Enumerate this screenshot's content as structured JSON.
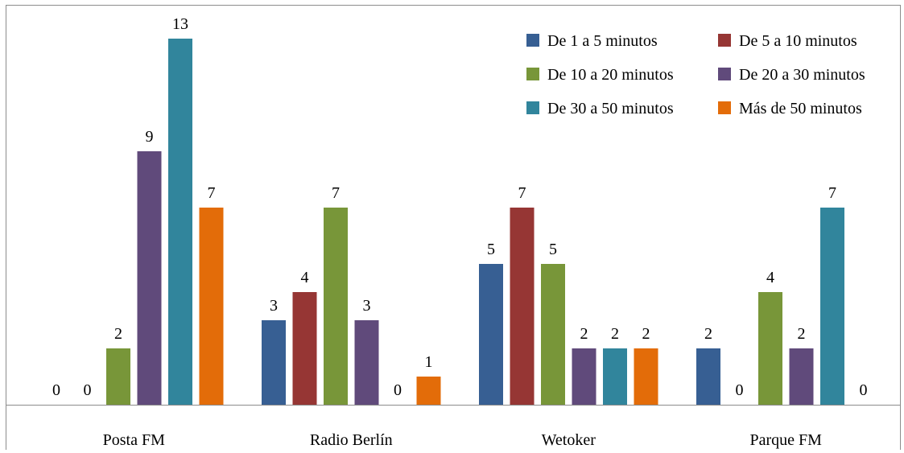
{
  "chart_data": {
    "type": "bar",
    "title": "",
    "xlabel": "",
    "ylabel": "",
    "categories": [
      "Posta FM",
      "Radio Berlín",
      "Wetoker",
      "Parque FM"
    ],
    "ylim": [
      0,
      13
    ],
    "grid": false,
    "legend_position": "top-right",
    "series": [
      {
        "name": "De 1 a 5 minutos",
        "color": "#375f93",
        "values": [
          0,
          3,
          5,
          2
        ]
      },
      {
        "name": "De 5 a 10 minutos",
        "color": "#963634",
        "values": [
          0,
          4,
          7,
          0
        ]
      },
      {
        "name": "De 10 a 20 minutos",
        "color": "#789639",
        "values": [
          2,
          7,
          5,
          4
        ]
      },
      {
        "name": "De 20 a 30 minutos",
        "color": "#604a7b",
        "values": [
          9,
          3,
          2,
          2
        ]
      },
      {
        "name": "De 30 a 50 minutos",
        "color": "#31859c",
        "values": [
          13,
          0,
          2,
          7
        ]
      },
      {
        "name": "Más de 50 minutos",
        "color": "#e36c09",
        "values": [
          7,
          1,
          2,
          0
        ]
      }
    ]
  }
}
